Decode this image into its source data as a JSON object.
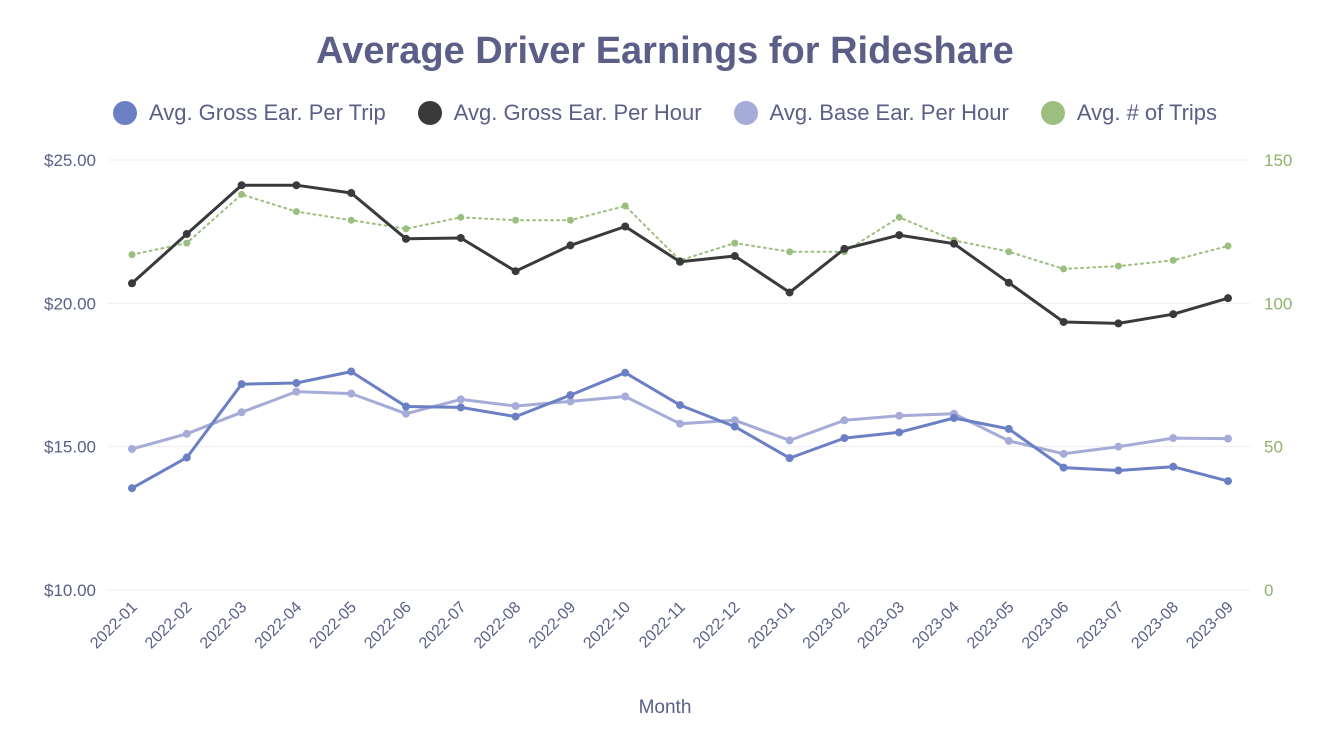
{
  "chart_data": {
    "type": "line",
    "title": "Average Driver Earnings for Rideshare",
    "xlabel": "Month",
    "categories": [
      "2022-01",
      "2022-02",
      "2022-03",
      "2022-04",
      "2022-05",
      "2022-06",
      "2022-07",
      "2022-08",
      "2022-09",
      "2022-10",
      "2022-11",
      "2022-12",
      "2023-01",
      "2023-02",
      "2023-03",
      "2023-04",
      "2023-05",
      "2023-06",
      "2023-07",
      "2023-08",
      "2023-09"
    ],
    "y_left": {
      "range": [
        10,
        25
      ],
      "ticks": [
        10,
        15,
        20,
        25
      ],
      "tick_labels": [
        "$10.00",
        "$15.00",
        "$20.00",
        "$25.00"
      ]
    },
    "y_right": {
      "range": [
        0,
        150
      ],
      "ticks": [
        0,
        50,
        100,
        150
      ],
      "tick_labels": [
        "0",
        "50",
        "100",
        "150"
      ]
    },
    "grid": true,
    "legend_position": "top-center",
    "series": [
      {
        "name": "Avg. Gross Ear. Per Trip",
        "axis": "left",
        "color": "#6b7fc4",
        "style": "solid",
        "values": [
          13.55,
          14.62,
          17.18,
          17.22,
          17.62,
          16.4,
          16.37,
          16.05,
          16.8,
          17.58,
          16.45,
          15.7,
          14.6,
          15.3,
          15.5,
          16.0,
          15.62,
          14.27,
          14.17,
          14.3,
          13.8
        ]
      },
      {
        "name": "Avg. Gross Ear. Per Hour",
        "axis": "left",
        "color": "#3a3a3c",
        "style": "solid",
        "values": [
          20.7,
          22.42,
          24.12,
          24.12,
          23.85,
          22.25,
          22.28,
          21.12,
          22.02,
          22.68,
          21.45,
          21.65,
          20.38,
          21.9,
          22.38,
          22.08,
          20.72,
          19.35,
          19.3,
          19.62,
          20.18
        ]
      },
      {
        "name": "Avg. Base Ear. Per Hour",
        "axis": "left",
        "color": "#a6acd8",
        "style": "solid",
        "values": [
          14.92,
          15.45,
          16.2,
          16.92,
          16.85,
          16.15,
          16.65,
          16.42,
          16.58,
          16.75,
          15.8,
          15.92,
          15.22,
          15.92,
          16.08,
          16.15,
          15.2,
          14.75,
          15.0,
          15.3,
          15.28
        ]
      },
      {
        "name": "Avg. # of Trips",
        "axis": "right",
        "color": "#9cbf80",
        "style": "dotted",
        "values": [
          117,
          121,
          138,
          132,
          129,
          126,
          130,
          129,
          129,
          134,
          115,
          121,
          118,
          118,
          130,
          122,
          118,
          112,
          113,
          115,
          120
        ]
      }
    ]
  }
}
